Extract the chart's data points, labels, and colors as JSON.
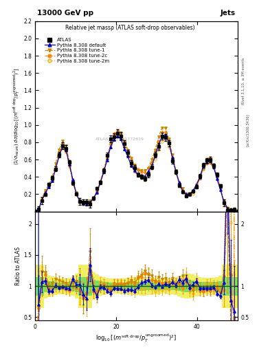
{
  "title_top": "13000 GeV pp",
  "title_right": "Jets",
  "plot_title": "Relative jet massρ (ATLAS soft-drop observables)",
  "watermark": "ATLAS_2019_I1772819",
  "rivet_text": "Rivet 3.1.10, ≥ 3M events",
  "arxiv_text": "[arXiv:1306.3436]",
  "xlabel": "log_{10}[(m^{soft drop}/p_T^{ungroomed})^2]",
  "ylabel": "(1/σ_{resum}) dσ/d log_{10}[(m^{soft drop}/p_T^{ungroomed})^2]",
  "ylabel_ratio": "Ratio to ATLAS",
  "xlim": [
    0,
    50
  ],
  "ylim_main": [
    0,
    2.2
  ],
  "ylim_ratio": [
    0.45,
    2.2
  ],
  "yticks_main": [
    0.2,
    0.4,
    0.6,
    0.8,
    1.0,
    1.2,
    1.4,
    1.6,
    1.8,
    2.0,
    2.2
  ],
  "yticks_ratio": [
    0.5,
    1.0,
    1.5,
    2.0
  ],
  "xticks": [
    0,
    20,
    40
  ],
  "colors": {
    "atlas_data": "#000000",
    "pythia_default": "#0000dd",
    "pythia_tune1": "#cc8800",
    "pythia_tune2c": "#ff8800",
    "pythia_tune2m": "#ffaa00",
    "band_green": "#66dd66",
    "band_yellow": "#eeee44"
  },
  "legend_entries": [
    "ATLAS",
    "Pythia 8.308 default",
    "Pythia 8.308 tune-1",
    "Pythia 8.308 tune-2c",
    "Pythia 8.308 tune-2m"
  ]
}
